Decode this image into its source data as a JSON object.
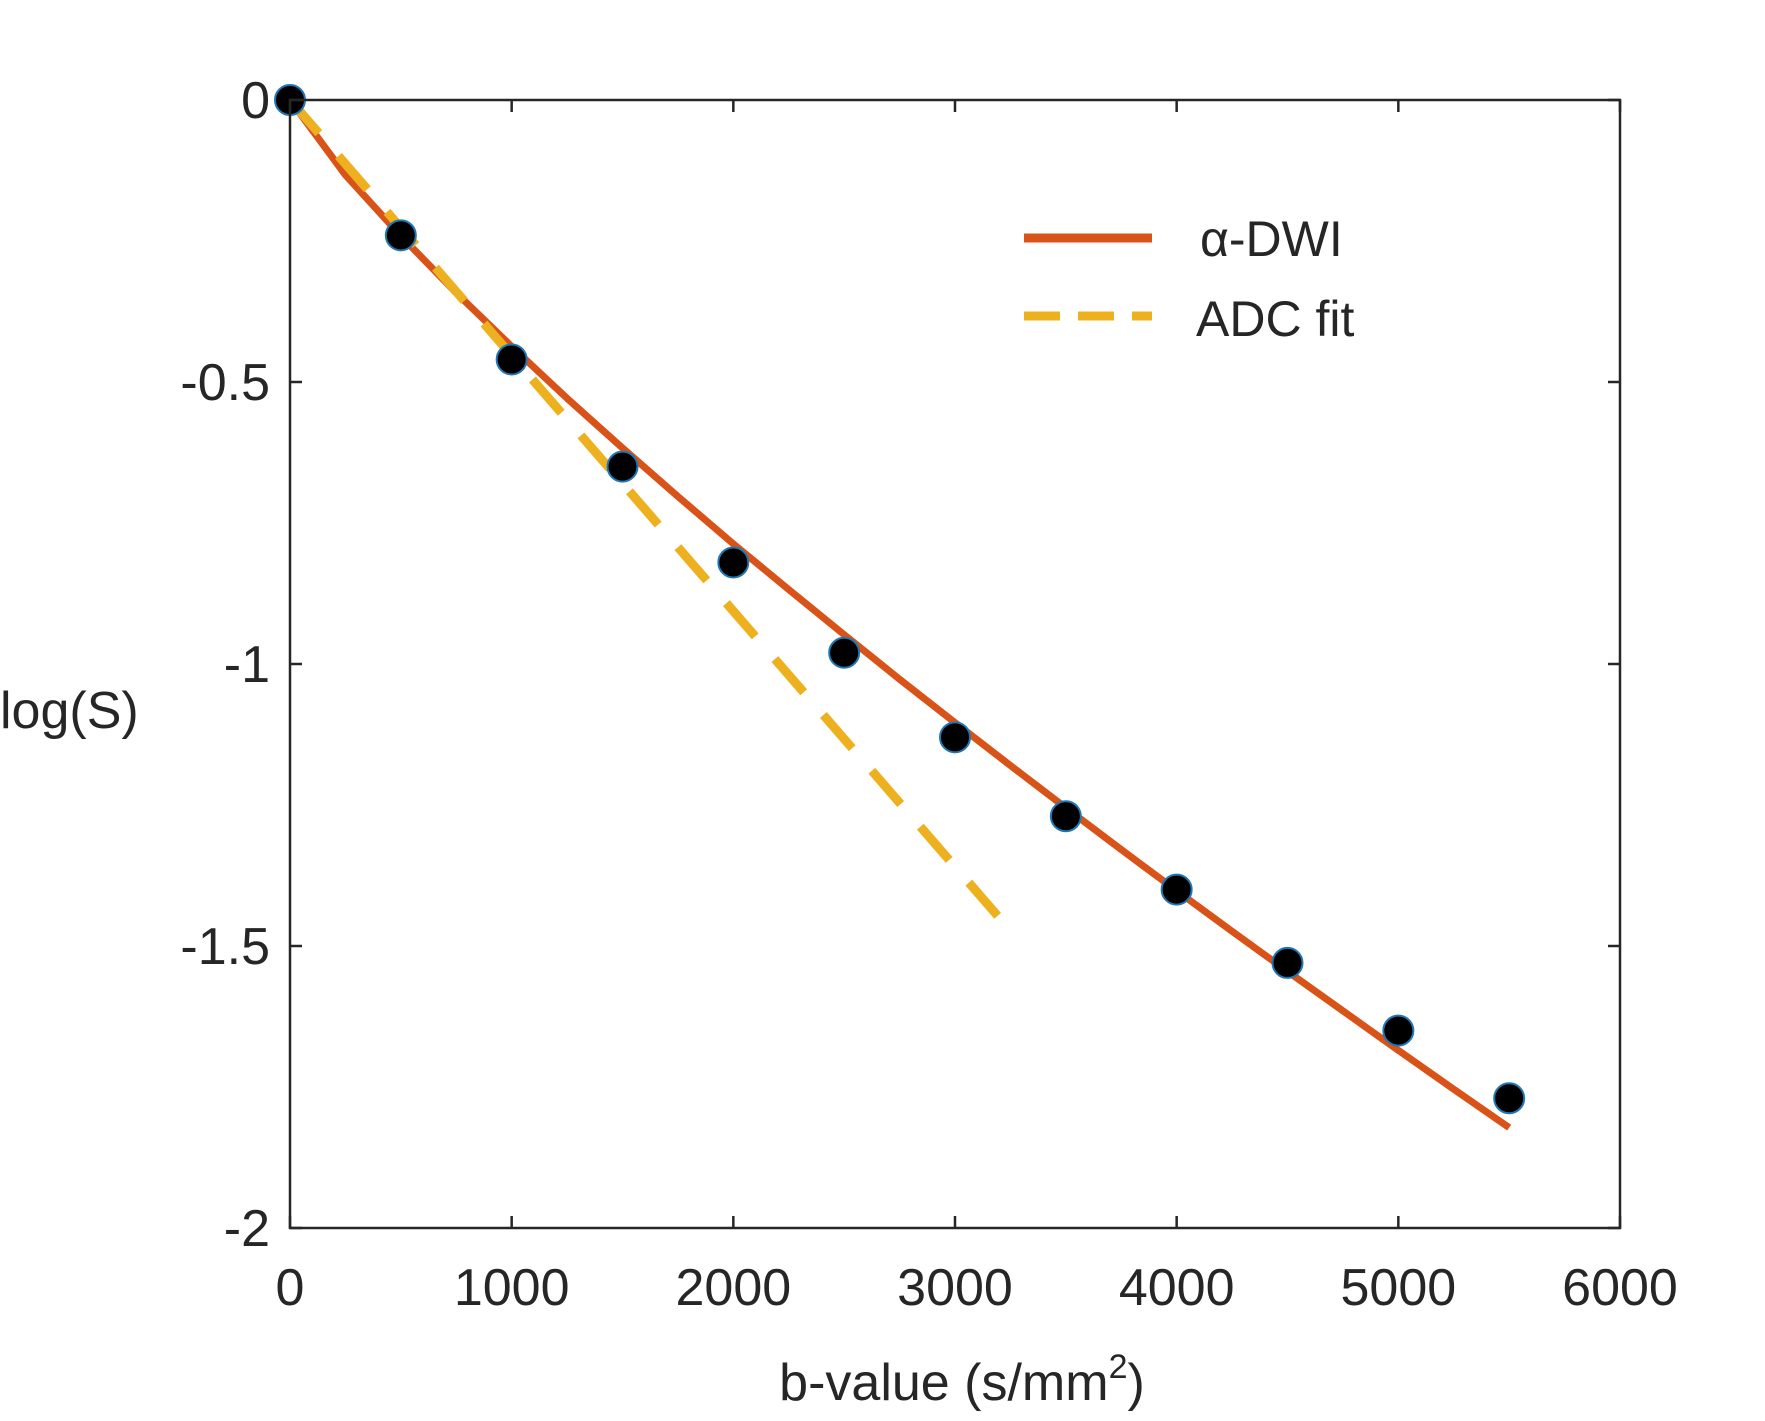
{
  "chart_data": {
    "type": "scatter",
    "title": "",
    "xlabel": "b-value (s/mm",
    "xlabel_sup": "2",
    "xlabel_close": ")",
    "ylabel": "log(S)",
    "xlim": [
      0,
      6000
    ],
    "ylim": [
      -2,
      0
    ],
    "grid": false,
    "legend_position": "top-right",
    "x_ticks": [
      0,
      1000,
      2000,
      3000,
      4000,
      5000,
      6000
    ],
    "x_tick_labels": [
      "0",
      "1000",
      "2000",
      "3000",
      "4000",
      "5000",
      "6000"
    ],
    "y_ticks": [
      0,
      -0.5,
      -1,
      -1.5,
      -2
    ],
    "y_tick_labels": [
      "0",
      "-0.5",
      "-1",
      "-1.5",
      "-2"
    ],
    "series": [
      {
        "name": "data",
        "kind": "scatter",
        "color": "#000000",
        "edge_color": "#1f77b4",
        "x": [
          0,
          500,
          1000,
          1500,
          2000,
          2500,
          3000,
          3500,
          4000,
          4500,
          5000,
          5500
        ],
        "y": [
          0,
          -0.24,
          -0.46,
          -0.65,
          -0.82,
          -0.98,
          -1.13,
          -1.27,
          -1.4,
          -1.53,
          -1.65,
          -1.77
        ]
      },
      {
        "name": "α-DWI",
        "kind": "line",
        "style": "solid",
        "color": "#d95319",
        "x": [
          0,
          250,
          500,
          750,
          1000,
          1250,
          1500,
          1750,
          2000,
          2250,
          2500,
          2750,
          3000,
          3250,
          3500,
          3750,
          4000,
          4250,
          4500,
          4750,
          5000,
          5250,
          5500
        ],
        "y": [
          0,
          -0.133,
          -0.241,
          -0.342,
          -0.437,
          -0.529,
          -0.617,
          -0.703,
          -0.787,
          -0.868,
          -0.948,
          -1.027,
          -1.104,
          -1.18,
          -1.255,
          -1.329,
          -1.402,
          -1.474,
          -1.545,
          -1.615,
          -1.685,
          -1.754,
          -1.822
        ]
      },
      {
        "name": "ADC fit",
        "kind": "line",
        "style": "dashed",
        "color": "#edb120",
        "x": [
          0,
          3200
        ],
        "y": [
          0,
          -1.45
        ]
      }
    ],
    "legend": [
      {
        "label": "α-DWI",
        "style": "solid",
        "color": "#d95319"
      },
      {
        "label": "ADC fit",
        "style": "dashed",
        "color": "#edb120"
      }
    ]
  }
}
